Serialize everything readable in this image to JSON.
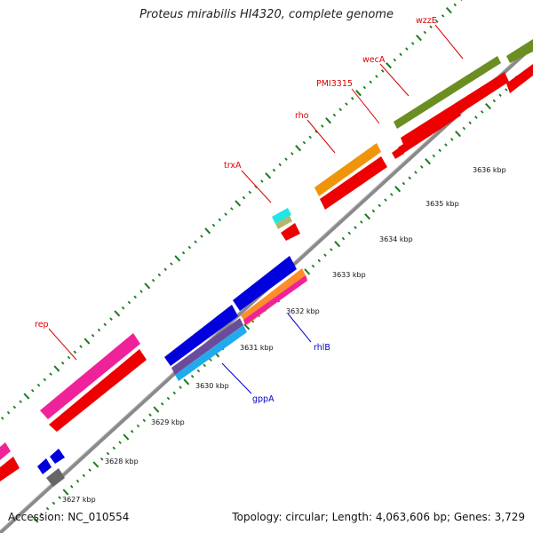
{
  "title": "Proteus mirabilis HI4320, complete genome",
  "accession_label": "Accession: NC_010554",
  "summary_label": "Topology: circular; Length: 4,063,606 bp; Genes: 3,729",
  "colors": {
    "backbone": "#8a8a8a",
    "ticks": "#1a7d1a",
    "label_red": "#dd0000",
    "label_blue": "#0000cc"
  },
  "kbp_labels": [
    "3627 kbp",
    "3628 kbp",
    "3629 kbp",
    "3630 kbp",
    "3631 kbp",
    "3632 kbp",
    "3633 kbp",
    "3634 kbp",
    "3635 kbp",
    "3636 kbp"
  ],
  "gene_labels": [
    {
      "name": "wzzE",
      "color": "#dd0000"
    },
    {
      "name": "wecA",
      "color": "#dd0000"
    },
    {
      "name": "PMI3315",
      "color": "#dd0000"
    },
    {
      "name": "rho",
      "color": "#dd0000"
    },
    {
      "name": "trxA",
      "color": "#dd0000"
    },
    {
      "name": "rep",
      "color": "#dd0000"
    },
    {
      "name": "rhlB",
      "color": "#0000cc"
    },
    {
      "name": "gppA",
      "color": "#0000cc"
    }
  ]
}
